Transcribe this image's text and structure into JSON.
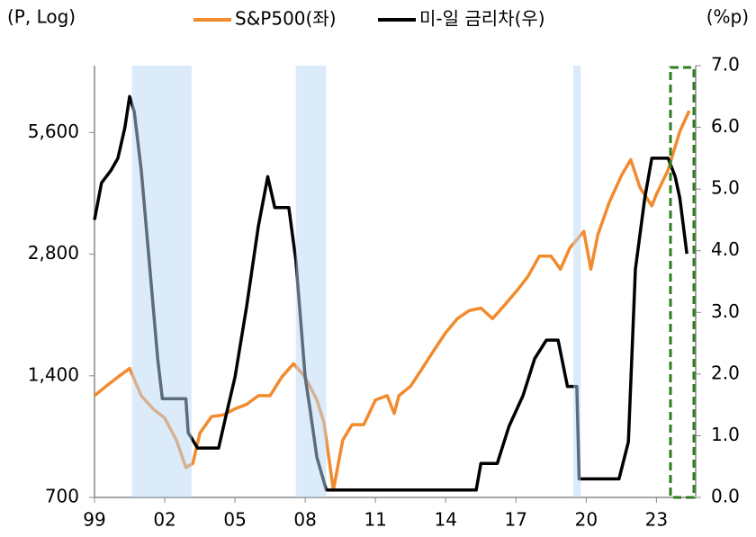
{
  "chart_data": {
    "type": "line",
    "y_label": "(P, Log)",
    "y2_label": "(%p)",
    "xlim": [
      1999,
      2024.6
    ],
    "xticks": [
      {
        "value": 1999,
        "label": "99"
      },
      {
        "value": 2002,
        "label": "02"
      },
      {
        "value": 2005,
        "label": "05"
      },
      {
        "value": 2008,
        "label": "08"
      },
      {
        "value": 2011,
        "label": "11"
      },
      {
        "value": 2014,
        "label": "14"
      },
      {
        "value": 2017,
        "label": "17"
      },
      {
        "value": 2020,
        "label": "20"
      },
      {
        "value": 2023,
        "label": "23"
      }
    ],
    "ylim": [
      700,
      8200
    ],
    "log_y": true,
    "yticks": [
      700,
      {
        "value": 1400,
        "label": "1,400"
      },
      {
        "value": 2800,
        "label": "2,800"
      },
      {
        "value": 5600,
        "label": "5,600"
      }
    ],
    "y2lim": [
      0,
      7
    ],
    "y2ticks": [
      {
        "value": 0,
        "label": "0.0"
      },
      {
        "value": 1,
        "label": "1.0"
      },
      {
        "value": 2,
        "label": "2.0"
      },
      {
        "value": 3,
        "label": "3.0"
      },
      {
        "value": 4,
        "label": "4.0"
      },
      {
        "value": 5,
        "label": "5.0"
      },
      {
        "value": 6,
        "label": "6.0"
      },
      {
        "value": 7,
        "label": "7.0"
      }
    ],
    "shaded": [
      [
        2000.6,
        2003.15
      ],
      [
        2007.6,
        2008.9
      ],
      [
        2019.45,
        2019.77
      ]
    ],
    "highlight": [
      2023.6,
      2024.6
    ],
    "series": [
      {
        "name": "S&P500(좌)",
        "color": "#f28a2e",
        "x": [
          1999.0,
          1999.5,
          2000.0,
          2000.5,
          2001.0,
          2001.5,
          2002.0,
          2002.5,
          2002.9,
          2003.2,
          2003.5,
          2004.0,
          2004.5,
          2005.0,
          2005.5,
          2006.0,
          2006.5,
          2007.0,
          2007.5,
          2008.0,
          2008.5,
          2008.8,
          2009.2,
          2009.6,
          2010.0,
          2010.5,
          2011.0,
          2011.5,
          2011.8,
          2012.0,
          2012.5,
          2013.0,
          2013.5,
          2014.0,
          2014.5,
          2015.0,
          2015.5,
          2016.0,
          2016.5,
          2017.0,
          2017.5,
          2018.0,
          2018.5,
          2018.9,
          2019.3,
          2019.9,
          2020.2,
          2020.5,
          2021.0,
          2021.5,
          2021.9,
          2022.3,
          2022.8,
          2023.0,
          2023.5,
          2024.0,
          2024.4
        ],
        "values": [
          1250,
          1320,
          1390,
          1460,
          1250,
          1160,
          1100,
          970,
          830,
          850,
          1010,
          1110,
          1120,
          1160,
          1190,
          1250,
          1250,
          1390,
          1500,
          1390,
          1220,
          1070,
          730,
          970,
          1060,
          1060,
          1220,
          1250,
          1130,
          1250,
          1320,
          1460,
          1620,
          1790,
          1940,
          2030,
          2060,
          1940,
          2090,
          2260,
          2460,
          2770,
          2770,
          2570,
          2900,
          3190,
          2570,
          3130,
          3780,
          4380,
          4800,
          4090,
          3690,
          3940,
          4530,
          5640,
          6340
        ]
      },
      {
        "name": "미-일 금리차(우)",
        "color": "#000000",
        "axis": "y2",
        "x": [
          1999.0,
          1999.3,
          1999.7,
          2000.0,
          2000.3,
          2000.5,
          2000.7,
          2001.0,
          2001.3,
          2001.7,
          2001.9,
          2002.9,
          2003.0,
          2003.4,
          2004.3,
          2004.6,
          2005.0,
          2005.5,
          2006.0,
          2006.4,
          2006.7,
          2007.3,
          2007.6,
          2008.0,
          2008.2,
          2008.5,
          2008.9,
          2015.3,
          2015.5,
          2016.2,
          2016.7,
          2017.3,
          2017.8,
          2018.3,
          2018.8,
          2019.2,
          2019.6,
          2019.7,
          2021.4,
          2021.8,
          2022.1,
          2022.5,
          2022.8,
          2023.5,
          2023.8,
          2024.0,
          2024.3
        ],
        "values": [
          4.5,
          5.1,
          5.3,
          5.5,
          6.0,
          6.5,
          6.25,
          5.3,
          4.0,
          2.25,
          1.6,
          1.6,
          1.05,
          0.8,
          0.8,
          1.3,
          1.95,
          3.1,
          4.4,
          5.2,
          4.7,
          4.7,
          3.85,
          1.95,
          1.45,
          0.65,
          0.12,
          0.12,
          0.55,
          0.55,
          1.15,
          1.65,
          2.25,
          2.55,
          2.55,
          1.8,
          1.8,
          0.3,
          0.3,
          0.9,
          3.7,
          4.85,
          5.5,
          5.5,
          5.2,
          4.85,
          3.95
        ]
      }
    ]
  }
}
